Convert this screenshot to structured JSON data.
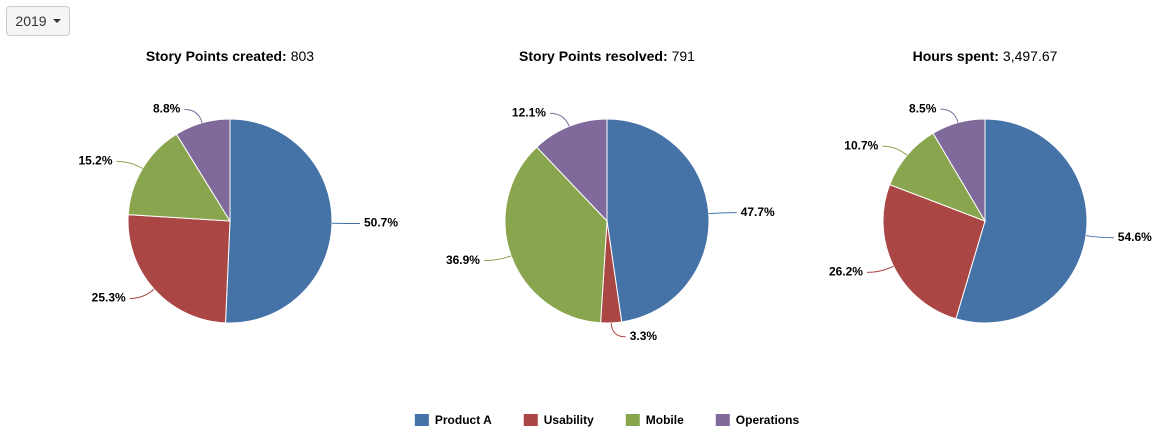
{
  "year_selector": "2019",
  "chart_data": [
    {
      "type": "pie",
      "title": "Story Points created:",
      "total": 803,
      "categories": [
        "Product A",
        "Usability",
        "Mobile",
        "Operations"
      ],
      "values": [
        50.7,
        25.3,
        15.2,
        8.8
      ],
      "value_labels": [
        "50.7%",
        "25.3%",
        "15.2%",
        "8.8%"
      ],
      "colors": [
        "#4572a7",
        "#aa4643",
        "#89a54e",
        "#80699b"
      ]
    },
    {
      "type": "pie",
      "title": "Story Points resolved:",
      "total": 791,
      "categories": [
        "Product A",
        "Usability",
        "Mobile",
        "Operations"
      ],
      "values": [
        47.7,
        3.3,
        36.9,
        12.1
      ],
      "value_labels": [
        "47.7%",
        "3.3%",
        "36.9%",
        "12.1%"
      ],
      "colors": [
        "#4572a7",
        "#aa4643",
        "#89a54e",
        "#80699b"
      ]
    },
    {
      "type": "pie",
      "title": "Hours spent:",
      "total": {
        "value": 3497.67,
        "label": "3,497.67"
      },
      "categories": [
        "Product A",
        "Usability",
        "Mobile",
        "Operations"
      ],
      "values": [
        54.6,
        26.2,
        10.7,
        8.5
      ],
      "value_labels": [
        "54.6%",
        "26.2%",
        "10.7%",
        "8.5%"
      ],
      "colors": [
        "#4572a7",
        "#aa4643",
        "#89a54e",
        "#80699b"
      ]
    }
  ]
}
